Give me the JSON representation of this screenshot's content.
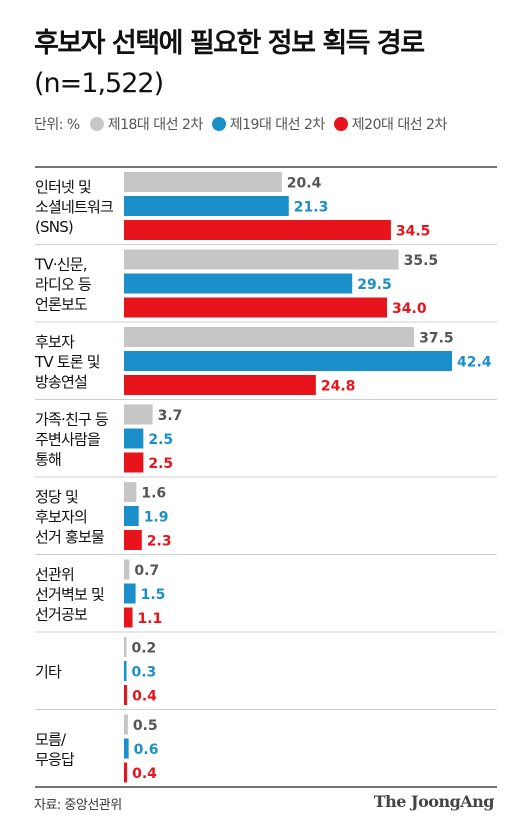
{
  "header": {
    "title": "후보자 선택에 필요한 정보 획득 경로",
    "subtitle": "(n=1,522)"
  },
  "legend": {
    "unit": "단위: %",
    "items": [
      {
        "label": "제18대 대선 2차",
        "color": "#c6c6c6"
      },
      {
        "label": "제19대 대선 2차",
        "color": "#1a8fc9"
      },
      {
        "label": "제20대 대선 2차",
        "color": "#e8141b"
      }
    ]
  },
  "chart_data": {
    "type": "bar",
    "orientation": "horizontal",
    "unit": "%",
    "categories": [
      [
        "인터넷 및",
        "소셜네트워크",
        "(SNS)"
      ],
      [
        "TV·신문,",
        "라디오 등",
        "언론보도"
      ],
      [
        "후보자",
        "TV 토론 및",
        "방송연설"
      ],
      [
        "가족·친구 등",
        "주변사람을",
        "통해"
      ],
      [
        "정당 및",
        "후보자의",
        "선거 홍보물"
      ],
      [
        "선관위",
        "선거벽보 및",
        "선거공보"
      ],
      [
        "기타"
      ],
      [
        "모름/",
        "무응답"
      ]
    ],
    "series": [
      {
        "name": "제18대 대선 2차",
        "color": "#c6c6c6",
        "label_color": "#555555",
        "values": [
          20.4,
          35.5,
          37.5,
          3.7,
          1.6,
          0.7,
          0.2,
          0.5
        ]
      },
      {
        "name": "제19대 대선 2차",
        "color": "#1a8fc9",
        "label_color": "#1a8fc9",
        "values": [
          21.3,
          29.5,
          42.4,
          2.5,
          1.9,
          1.5,
          0.3,
          0.6
        ]
      },
      {
        "name": "제20대 대선 2차",
        "color": "#e8141b",
        "label_color": "#e8141b",
        "values": [
          34.5,
          34.0,
          24.8,
          2.5,
          2.3,
          1.1,
          0.4,
          0.4
        ]
      }
    ],
    "xlim": [
      0,
      45
    ],
    "grid": false,
    "legend_position": "top-left"
  },
  "footer": {
    "source": "자료: 중앙선관위",
    "brand": "The JoongAng"
  }
}
